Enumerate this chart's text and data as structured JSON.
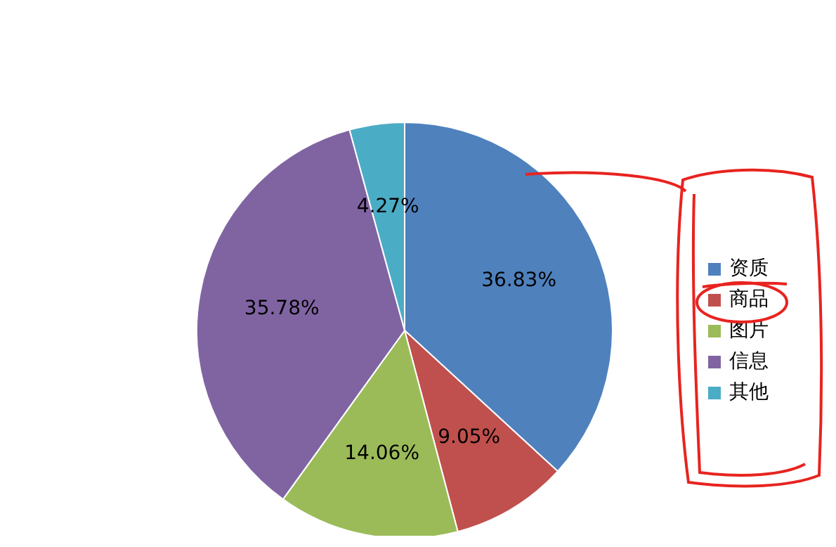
{
  "chart_data": {
    "type": "pie",
    "categories": [
      "资质",
      "商品",
      "图片",
      "信息",
      "其他"
    ],
    "values": [
      36.83,
      9.05,
      14.06,
      35.78,
      4.27
    ],
    "value_labels": [
      "36.83%",
      "9.05%",
      "14.06%",
      "35.78%",
      "4.27%"
    ],
    "colors": [
      "#4f81bd",
      "#c0504d",
      "#9bbb59",
      "#8064a2",
      "#4bacc6"
    ],
    "legend": "right"
  }
}
